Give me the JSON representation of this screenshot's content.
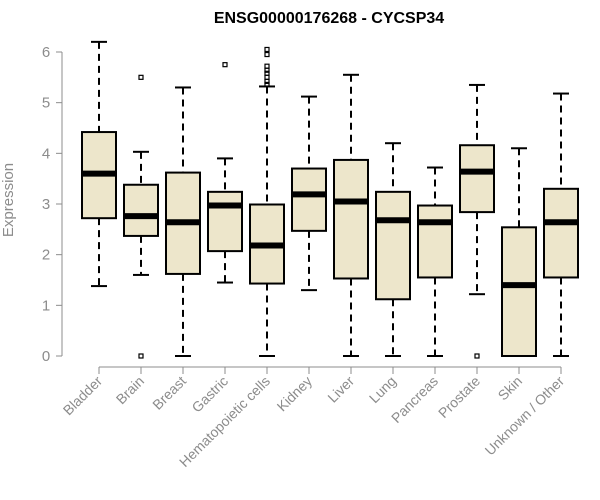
{
  "chart_data": {
    "type": "boxplot",
    "title": "ENSG00000176268 - CYCSP34",
    "xlabel": "",
    "ylabel": "Expression",
    "ylim": [
      0,
      6
    ],
    "yticks": [
      0,
      1,
      2,
      3,
      4,
      5,
      6
    ],
    "grid": false,
    "box_color": "#ede6cb",
    "categories": [
      "Bladder",
      "Brain",
      "Breast",
      "Gastric",
      "Hematopoietic cells",
      "Kidney",
      "Liver",
      "Lung",
      "Pancreas",
      "Prostate",
      "Skin",
      "Unknown / Other"
    ],
    "boxes": [
      {
        "min": 1.38,
        "q1": 2.72,
        "median": 3.6,
        "q3": 4.42,
        "max": 6.2,
        "outliers": []
      },
      {
        "min": 1.6,
        "q1": 2.37,
        "median": 2.76,
        "q3": 3.38,
        "max": 4.03,
        "outliers": [
          5.5,
          0.0
        ]
      },
      {
        "min": 0.0,
        "q1": 1.62,
        "median": 2.64,
        "q3": 3.62,
        "max": 5.3,
        "outliers": []
      },
      {
        "min": 1.45,
        "q1": 2.07,
        "median": 2.97,
        "q3": 3.24,
        "max": 3.9,
        "outliers": [
          5.75
        ]
      },
      {
        "min": 0.0,
        "q1": 1.43,
        "median": 2.18,
        "q3": 2.99,
        "max": 5.32,
        "outliers": [
          6.05,
          5.95,
          5.72,
          5.64,
          5.58,
          5.5,
          5.42,
          5.36
        ]
      },
      {
        "min": 1.3,
        "q1": 2.47,
        "median": 3.19,
        "q3": 3.7,
        "max": 5.12,
        "outliers": []
      },
      {
        "min": 0.0,
        "q1": 1.53,
        "median": 3.05,
        "q3": 3.87,
        "max": 5.55,
        "outliers": []
      },
      {
        "min": 0.0,
        "q1": 1.12,
        "median": 2.68,
        "q3": 3.24,
        "max": 4.2,
        "outliers": []
      },
      {
        "min": 0.0,
        "q1": 1.55,
        "median": 2.64,
        "q3": 2.97,
        "max": 3.72,
        "outliers": []
      },
      {
        "min": 1.22,
        "q1": 2.84,
        "median": 3.64,
        "q3": 4.16,
        "max": 5.35,
        "outliers": [
          0.0
        ]
      },
      {
        "min": 0.0,
        "q1": 0.0,
        "median": 1.4,
        "q3": 2.54,
        "max": 4.1,
        "outliers": []
      },
      {
        "min": 0.0,
        "q1": 1.55,
        "median": 2.64,
        "q3": 3.3,
        "max": 5.18,
        "outliers": []
      }
    ]
  }
}
